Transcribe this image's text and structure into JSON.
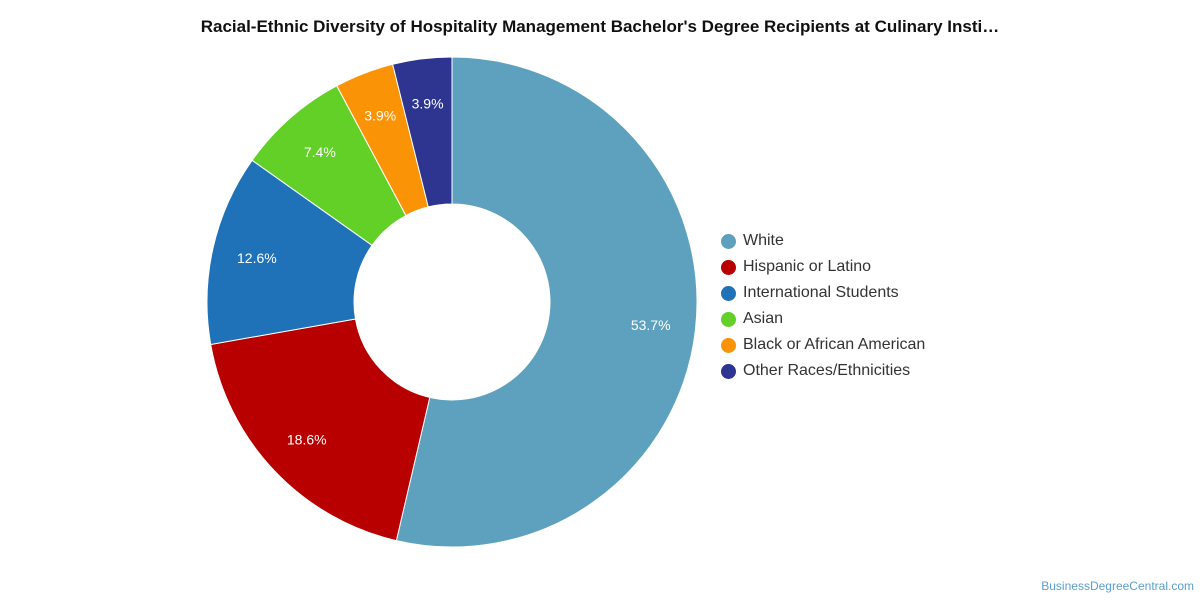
{
  "title": "Racial-Ethnic Diversity of Hospitality Management Bachelor's Degree Recipients at Culinary Insti…",
  "source": "BusinessDegreeCentral.com",
  "chart_data": {
    "type": "pie",
    "style": "donut",
    "title": "Racial-Ethnic Diversity of Hospitality Management Bachelor's Degree Recipients at Culinary Insti…",
    "legend_position": "right",
    "start_angle": "top, clockwise",
    "categories": [
      "White",
      "Hispanic or Latino",
      "International Students",
      "Asian",
      "Black or African American",
      "Other Races/Ethnicities"
    ],
    "values": [
      53.7,
      18.6,
      12.6,
      7.4,
      3.9,
      3.9
    ],
    "labels": [
      "53.7%",
      "18.6%",
      "12.6%",
      "7.4%",
      "3.9%",
      "3.9%"
    ],
    "colors": [
      "#5ea1be",
      "#b80000",
      "#1f72b8",
      "#62d026",
      "#fa9406",
      "#2d3591"
    ]
  }
}
